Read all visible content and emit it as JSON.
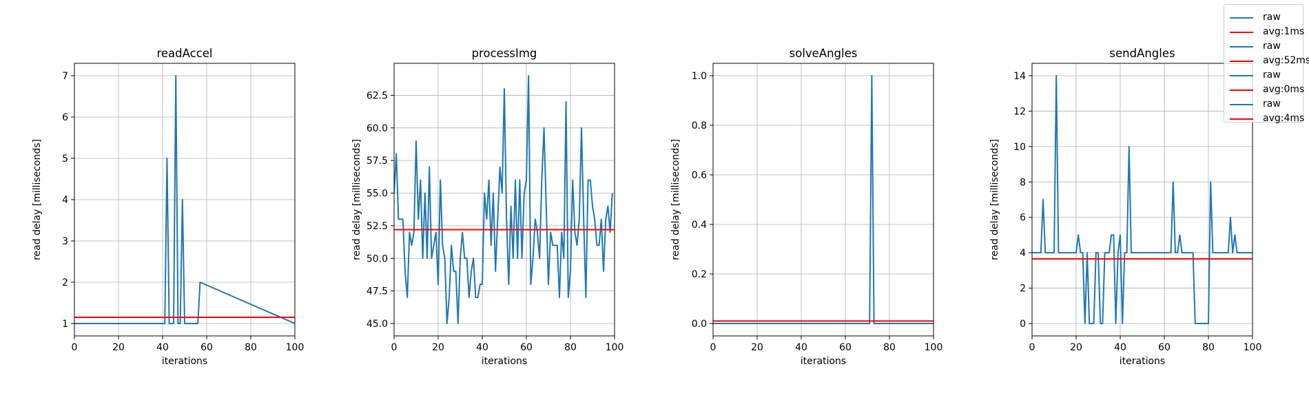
{
  "chart_data": [
    {
      "type": "line",
      "title": "readAccel",
      "xlabel": "iterations",
      "ylabel": "read delay [milliseconds]",
      "xlim": [
        0,
        100
      ],
      "ylim": [
        0.7,
        7.3
      ],
      "xticks": [
        0,
        20,
        40,
        60,
        80,
        100
      ],
      "xtick_labels": [
        "0",
        "20",
        "40",
        "60",
        "80",
        "100"
      ],
      "yticks": [
        1,
        2,
        3,
        4,
        5,
        6,
        7
      ],
      "ytick_labels": [
        "1",
        "2",
        "3",
        "4",
        "5",
        "6",
        "7"
      ],
      "grid": true,
      "series": [
        {
          "name": "raw",
          "color": "#1f77b4",
          "x": [
            0,
            41,
            42,
            43,
            44,
            45,
            46,
            47,
            48,
            49,
            50,
            55,
            56,
            57,
            100
          ],
          "y": [
            1,
            1,
            5,
            1,
            1,
            1,
            7,
            1,
            1,
            4,
            1,
            1,
            1,
            2,
            1
          ]
        },
        {
          "name": "avg:1ms",
          "color": "#ff0000",
          "x": [
            0,
            100
          ],
          "y": [
            1.15,
            1.15
          ]
        }
      ]
    },
    {
      "type": "line",
      "title": "processImg",
      "xlabel": "iterations",
      "ylabel": "read delay [milliseconds]",
      "xlim": [
        0,
        100
      ],
      "ylim": [
        44.05,
        64.95
      ],
      "xticks": [
        0,
        20,
        40,
        60,
        80,
        100
      ],
      "xtick_labels": [
        "0",
        "20",
        "40",
        "60",
        "80",
        "100"
      ],
      "yticks": [
        45.0,
        47.5,
        50.0,
        52.5,
        55.0,
        57.5,
        60.0,
        62.5
      ],
      "ytick_labels": [
        "45.0",
        "47.5",
        "50.0",
        "52.5",
        "55.0",
        "57.5",
        "60.0",
        "62.5"
      ],
      "grid": true,
      "series": [
        {
          "name": "raw",
          "color": "#1f77b4",
          "x": [
            0,
            1,
            2,
            3,
            4,
            5,
            6,
            7,
            8,
            9,
            10,
            11,
            12,
            13,
            14,
            15,
            16,
            17,
            18,
            19,
            20,
            21,
            22,
            23,
            24,
            25,
            26,
            27,
            28,
            29,
            30,
            31,
            32,
            33,
            34,
            35,
            36,
            37,
            38,
            39,
            40,
            41,
            42,
            43,
            44,
            45,
            46,
            47,
            48,
            49,
            50,
            51,
            52,
            53,
            54,
            55,
            56,
            57,
            58,
            59,
            60,
            61,
            62,
            63,
            64,
            65,
            66,
            67,
            68,
            69,
            70,
            71,
            72,
            73,
            74,
            75,
            76,
            77,
            78,
            79,
            80,
            81,
            82,
            83,
            84,
            85,
            86,
            87,
            88,
            89,
            90,
            91,
            92,
            93,
            94,
            95,
            96,
            97,
            98,
            99
          ],
          "y": [
            55,
            58,
            53,
            53,
            53,
            49,
            47,
            52,
            51,
            52,
            59,
            53,
            56,
            50,
            55,
            50,
            57,
            50,
            51,
            52,
            48,
            56,
            51,
            50,
            45,
            47,
            51,
            49,
            49,
            45,
            50,
            52,
            50,
            50,
            47,
            49,
            50,
            47,
            47,
            48,
            48,
            55,
            53,
            56,
            51,
            55,
            49,
            53,
            57,
            55,
            63,
            53,
            48,
            54,
            50,
            56,
            50,
            56,
            50,
            55,
            56,
            64,
            48,
            50,
            53,
            52,
            50,
            56,
            60,
            54,
            48,
            52,
            51,
            51,
            51,
            47,
            52,
            50,
            62,
            47,
            49,
            56,
            52,
            51,
            53,
            60,
            53,
            47,
            56,
            56,
            54,
            53,
            51,
            51,
            53,
            49,
            53,
            54,
            52,
            55
          ],
          "x_note": ""
        },
        {
          "name": "avg:52ms",
          "color": "#ff0000",
          "x": [
            0,
            100
          ],
          "y": [
            52.2,
            52.2
          ]
        }
      ]
    },
    {
      "type": "line",
      "title": "solveAngles",
      "xlabel": "iterations",
      "ylabel": "read delay [milliseconds]",
      "xlim": [
        0,
        100
      ],
      "ylim": [
        -0.05,
        1.05
      ],
      "xticks": [
        0,
        20,
        40,
        60,
        80,
        100
      ],
      "xtick_labels": [
        "0",
        "20",
        "40",
        "60",
        "80",
        "100"
      ],
      "yticks": [
        0.0,
        0.2,
        0.4,
        0.6,
        0.8,
        1.0
      ],
      "ytick_labels": [
        "0.0",
        "0.2",
        "0.4",
        "0.6",
        "0.8",
        "1.0"
      ],
      "grid": true,
      "series": [
        {
          "name": "raw",
          "color": "#1f77b4",
          "x": [
            0,
            71,
            72,
            73,
            100
          ],
          "y": [
            0,
            0,
            1,
            0,
            0
          ]
        },
        {
          "name": "avg:0ms",
          "color": "#ff0000",
          "x": [
            0,
            100
          ],
          "y": [
            0.01,
            0.01
          ]
        }
      ]
    },
    {
      "type": "line",
      "title": "sendAngles",
      "xlabel": "iterations",
      "ylabel": "read delay [milliseconds]",
      "xlim": [
        0,
        100
      ],
      "ylim": [
        -0.7,
        14.7
      ],
      "xticks": [
        0,
        20,
        40,
        60,
        80,
        100
      ],
      "xtick_labels": [
        "0",
        "20",
        "40",
        "60",
        "80",
        "100"
      ],
      "yticks": [
        0,
        2,
        4,
        6,
        8,
        10,
        12,
        14
      ],
      "ytick_labels": [
        "0",
        "2",
        "4",
        "6",
        "8",
        "10",
        "12",
        "14"
      ],
      "grid": true,
      "series": [
        {
          "name": "raw",
          "color": "#1f77b4",
          "x": [
            0,
            1,
            2,
            3,
            4,
            5,
            6,
            7,
            8,
            9,
            10,
            11,
            12,
            13,
            14,
            15,
            16,
            17,
            18,
            19,
            20,
            21,
            22,
            23,
            24,
            25,
            26,
            27,
            28,
            29,
            30,
            31,
            32,
            33,
            34,
            35,
            36,
            37,
            38,
            39,
            40,
            41,
            42,
            43,
            44,
            45,
            46,
            47,
            48,
            49,
            50,
            51,
            52,
            53,
            54,
            55,
            56,
            57,
            58,
            59,
            60,
            61,
            62,
            63,
            64,
            65,
            66,
            67,
            68,
            69,
            70,
            71,
            72,
            73,
            74,
            75,
            76,
            77,
            78,
            79,
            80,
            81,
            82,
            83,
            84,
            85,
            86,
            87,
            88,
            89,
            90,
            91,
            92,
            93,
            94,
            95,
            96,
            97,
            98,
            99,
            100
          ],
          "y": [
            4,
            4,
            4,
            4,
            4,
            7,
            4,
            4,
            4,
            4,
            4,
            14,
            4,
            4,
            4,
            4,
            4,
            4,
            4,
            4,
            4,
            5,
            4,
            4,
            0,
            4,
            0,
            0,
            0,
            4,
            4,
            0,
            0,
            4,
            4,
            4,
            5,
            5,
            0,
            4,
            5,
            0,
            4,
            4,
            10,
            4,
            4,
            4,
            4,
            4,
            4,
            4,
            4,
            4,
            4,
            4,
            4,
            4,
            4,
            4,
            4,
            4,
            4,
            4,
            8,
            4,
            4,
            5,
            4,
            4,
            4,
            4,
            4,
            4,
            0,
            0,
            0,
            0,
            0,
            0,
            0,
            8,
            4,
            4,
            4,
            4,
            4,
            4,
            4,
            4,
            6,
            4,
            5,
            4,
            4,
            4,
            4,
            4,
            4,
            4,
            4
          ]
        },
        {
          "name": "avg:4ms",
          "color": "#ff0000",
          "x": [
            0,
            100
          ],
          "y": [
            3.65,
            3.65
          ]
        }
      ]
    }
  ],
  "legend": {
    "placement": "top-right",
    "entries": [
      {
        "label": "raw",
        "color": "#1f77b4"
      },
      {
        "label": "avg:1ms",
        "color": "#ff0000"
      },
      {
        "label": "raw",
        "color": "#1f77b4"
      },
      {
        "label": "avg:52ms",
        "color": "#ff0000"
      },
      {
        "label": "raw",
        "color": "#1f77b4"
      },
      {
        "label": "avg:0ms",
        "color": "#ff0000"
      },
      {
        "label": "raw",
        "color": "#1f77b4"
      },
      {
        "label": "avg:4ms",
        "color": "#ff0000"
      }
    ]
  }
}
